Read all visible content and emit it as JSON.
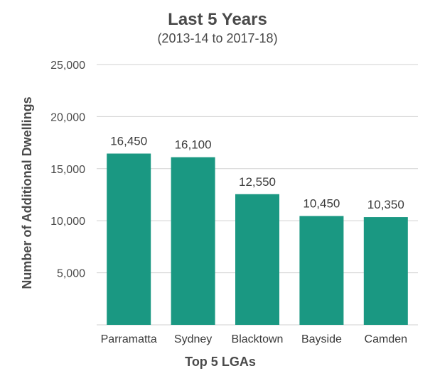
{
  "chart_data": {
    "type": "bar",
    "title": "Last 5 Years",
    "subtitle": "(2013-14 to 2017-18)",
    "xlabel": "Top 5 LGAs",
    "ylabel": "Number of Additional Dwellings",
    "categories": [
      "Parramatta",
      "Sydney",
      "Blacktown",
      "Bayside",
      "Camden"
    ],
    "values": [
      16450,
      16100,
      12550,
      10450,
      10350
    ],
    "data_labels": [
      "16,450",
      "16,100",
      "12,550",
      "10,450",
      "10,350"
    ],
    "ylim": [
      0,
      25000
    ],
    "yticks": [
      5000,
      10000,
      15000,
      20000,
      25000
    ],
    "ytick_labels": [
      "5,000",
      "10,000",
      "15,000",
      "20,000",
      "25,000"
    ],
    "grid": true,
    "legend": "none",
    "bar_color": "#1a9882",
    "grid_color": "#d0d0d0"
  }
}
